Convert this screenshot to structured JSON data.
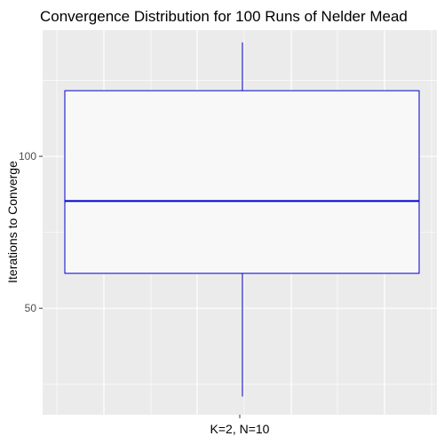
{
  "chart_data": {
    "type": "boxplot",
    "title": "Convergence Distribution for 100 Runs of Nelder Mead",
    "xlabel": "",
    "ylabel": "Iterations to Converge",
    "categories": [
      "K=2, N=10"
    ],
    "boxes": [
      {
        "category": "K=2, N=10",
        "whisker_low": 21,
        "q1": 61.5,
        "median": 85.3,
        "q3": 121.6,
        "whisker_high": 137.5
      }
    ],
    "y_ticks": [
      50,
      100
    ],
    "ylim": [
      15,
      141.5
    ],
    "grid": true,
    "colors": {
      "box_line": "#0000cc",
      "box_fill": "#f8f8f8",
      "panel_background": "#ebebeb",
      "grid": "#ffffff",
      "tick_text": "#4d4d4d"
    }
  }
}
